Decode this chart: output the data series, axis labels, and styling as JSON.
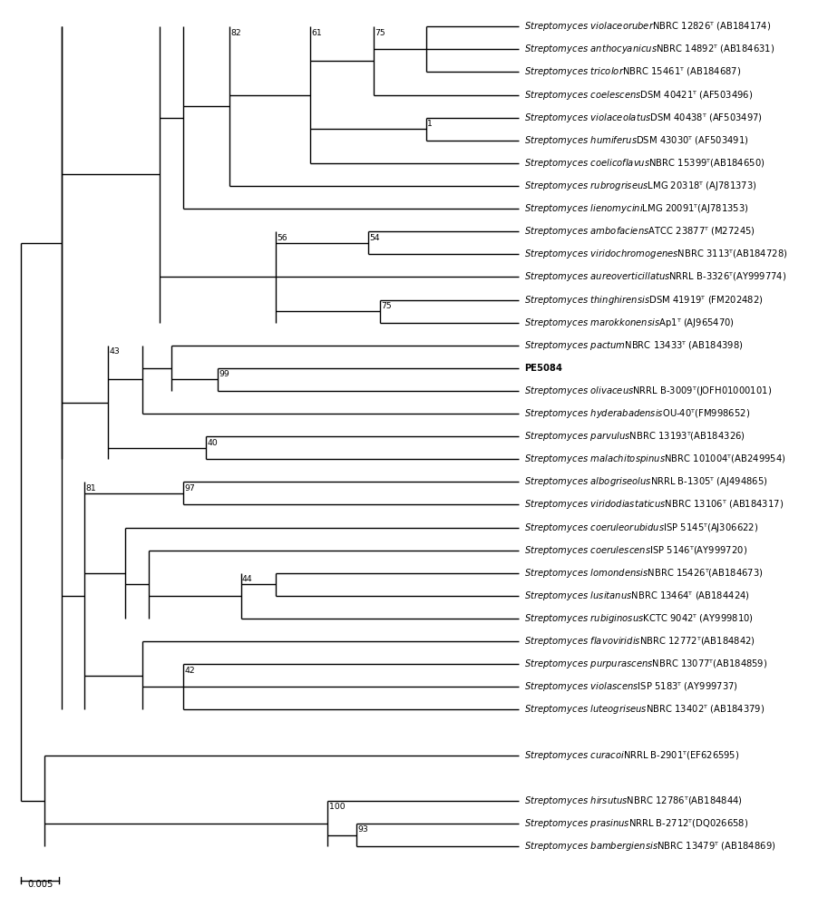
{
  "figsize": [
    9.13,
    10.0
  ],
  "dpi": 100,
  "linewidth": 1.0,
  "font_size": 7.2,
  "taxa": {
    "1": {
      "italic": "Streptomyces violaceoruber",
      "regular": "NBRC 12826ᵀ (AB184174)"
    },
    "2": {
      "italic": "Streptomyces anthocyanicus",
      "regular": "NBRC 14892ᵀ (AB184631)"
    },
    "3": {
      "italic": "Streptomyces tricolor",
      "regular": "NBRC 15461ᵀ (AB184687)"
    },
    "4": {
      "italic": "Streptomyces coelescens",
      "regular": "DSM 40421ᵀ (AF503496)"
    },
    "5": {
      "italic": "Streptomyces violaceolatus",
      "regular": "DSM 40438ᵀ (AF503497)"
    },
    "6": {
      "italic": "Streptomyces humiferus",
      "regular": "DSM 43030ᵀ (AF503491)"
    },
    "7": {
      "italic": "Streptomyces coelicoflavus",
      "regular": "NBRC 15399ᵀ(AB184650)"
    },
    "8": {
      "italic": "Streptomyces rubrogriseus",
      "regular": "LMG 20318ᵀ (AJ781373)"
    },
    "9": {
      "italic": "Streptomyces lienomycini",
      "regular": "LMG 20091ᵀ(AJ781353)"
    },
    "10": {
      "italic": "Streptomyces ambofaciens",
      "regular": "ATCC 23877ᵀ (M27245)"
    },
    "11": {
      "italic": "Streptomyces viridochromogenes",
      "regular": "NBRC 3113ᵀ(AB184728)"
    },
    "12": {
      "italic": "Streptomyces aureoverticillatus",
      "regular": "NRRL B-3326ᵀ(AY999774)"
    },
    "13": {
      "italic": "Streptomyces thinghirensis",
      "regular": "DSM 41919ᵀ (FM202482)"
    },
    "14": {
      "italic": "Streptomyces marokkonensis",
      "regular": "Ap1ᵀ (AJ965470)"
    },
    "15": {
      "italic": "Streptomyces pactum",
      "regular": "NBRC 13433ᵀ (AB184398)"
    },
    "16": {
      "bold": "PE5084",
      "regular": ""
    },
    "17": {
      "italic": "Streptomyces olivaceus",
      "regular": "NRRL B-3009ᵀ(JOFH01000101)"
    },
    "18": {
      "italic": "Streptomyces hyderabadensis",
      "regular": "OU-40ᵀ(FM998652)"
    },
    "19": {
      "italic": "Streptomyces parvulus",
      "regular": "NBRC 13193ᵀ(AB184326)"
    },
    "20": {
      "italic": "Streptomyces malachitospinus",
      "regular": "NBRC 101004ᵀ(AB249954)"
    },
    "21": {
      "italic": "Streptomyces albogriseolus",
      "regular": "NRRL B-1305ᵀ (AJ494865)"
    },
    "22": {
      "italic": "Streptomyces viridodiastaticus",
      "regular": "NBRC 13106ᵀ (AB184317)"
    },
    "23": {
      "italic": "Streptomyces coeruleorubidus",
      "regular": "ISP 5145ᵀ(AJ306622)"
    },
    "24": {
      "italic": "Streptomyces coerulescens",
      "regular": "ISP 5146ᵀ(AY999720)"
    },
    "25": {
      "italic": "Streptomyces lomondensis",
      "regular": "NBRC 15426ᵀ(AB184673)"
    },
    "26": {
      "italic": "Streptomyces lusitanus",
      "regular": "NBRC 13464ᵀ (AB184424)"
    },
    "27": {
      "italic": "Streptomyces rubiginosus",
      "regular": "KCTC 9042ᵀ (AY999810)"
    },
    "28": {
      "italic": "Streptomyces flavoviridis",
      "regular": "NBRC 12772ᵀ(AB184842)"
    },
    "29": {
      "italic": "Streptomyces purpurascens",
      "regular": "NBRC 13077ᵀ(AB184859)"
    },
    "30": {
      "italic": "Streptomyces violascens",
      "regular": "ISP 5183ᵀ (AY999737)"
    },
    "31": {
      "italic": "Streptomyces luteogriseus",
      "regular": "NBRC 13402ᵀ (AB184379)"
    },
    "33": {
      "italic": "Streptomyces curacoi",
      "regular": "NRRL B-2901ᵀ(EF626595)"
    },
    "35": {
      "italic": "Streptomyces hirsutus",
      "regular": "NBRC 12786ᵀ(AB184844)"
    },
    "36": {
      "italic": "Streptomyces prasinus",
      "regular": "NRRL B-2712ᵀ(DQ026658)"
    },
    "37": {
      "italic": "Streptomyces bambergiensis",
      "regular": "NBRC 13479ᵀ (AB184869)"
    }
  }
}
